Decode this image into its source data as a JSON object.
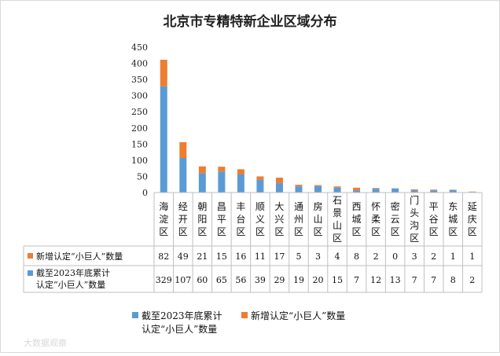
{
  "chart_data": {
    "type": "bar",
    "stacked": true,
    "title": "北京市专精特新企业区域分布",
    "categories": [
      "海淀区",
      "经开区",
      "朝阳区",
      "昌平区",
      "丰台区",
      "顺义区",
      "大兴区",
      "通州区",
      "房山区",
      "石景山区",
      "西城区",
      "怀柔区",
      "密云区",
      "门头沟区",
      "平谷区",
      "东城区",
      "延庆区"
    ],
    "series": [
      {
        "name": "截至2023年底累计认定“小巨人”数量",
        "table_label": "截至2023年底累计认定“小巨人”数量",
        "color": "#5b9bd5",
        "values": [
          329,
          107,
          60,
          65,
          56,
          39,
          29,
          19,
          20,
          15,
          7,
          12,
          13,
          7,
          7,
          8,
          2
        ]
      },
      {
        "name": "新增认定“小巨人”数量",
        "table_label": "新增认定“小巨人”数量",
        "color": "#ed7d31",
        "values": [
          82,
          49,
          21,
          15,
          16,
          11,
          17,
          5,
          3,
          4,
          8,
          2,
          0,
          3,
          2,
          1,
          1
        ]
      }
    ],
    "ylim": [
      0,
      450
    ],
    "yticks": [
      0,
      50,
      100,
      150,
      200,
      250,
      300,
      350,
      400,
      450
    ],
    "xlabel": "",
    "ylabel": "",
    "grid": false,
    "legend_position": "bottom"
  },
  "watermark": "大数据观察"
}
